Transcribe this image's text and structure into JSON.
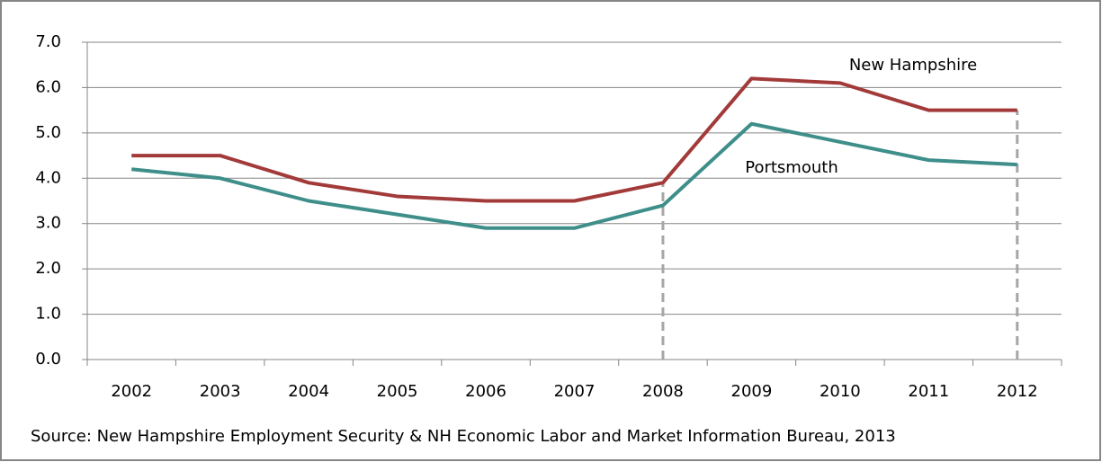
{
  "chart_data": {
    "type": "line",
    "categories": [
      "2002",
      "2003",
      "2004",
      "2005",
      "2006",
      "2007",
      "2008",
      "2009",
      "2010",
      "2011",
      "2012"
    ],
    "series": [
      {
        "name": "New Hampshire",
        "color": "#a33a3a",
        "values": [
          4.5,
          4.5,
          3.9,
          3.6,
          3.5,
          3.5,
          3.9,
          6.2,
          6.1,
          5.5,
          5.5
        ]
      },
      {
        "name": "Portsmouth",
        "color": "#3e8e8a",
        "values": [
          4.2,
          4.0,
          3.5,
          3.2,
          2.9,
          2.9,
          3.4,
          5.2,
          4.8,
          4.4,
          4.3
        ]
      }
    ],
    "ylim": [
      0,
      7
    ],
    "yticks": [
      {
        "value": 0,
        "label": "0.0"
      },
      {
        "value": 1,
        "label": "1.0"
      },
      {
        "value": 2,
        "label": "2.0"
      },
      {
        "value": 3,
        "label": "3.0"
      },
      {
        "value": 4,
        "label": "4.0"
      },
      {
        "value": 5,
        "label": "5.0"
      },
      {
        "value": 6,
        "label": "6.0"
      },
      {
        "value": 7,
        "label": "7.0"
      }
    ],
    "grid": true,
    "source": "Source: New Hampshire Employment Security & NH Economic Labor and Market Information Bureau, 2013"
  }
}
